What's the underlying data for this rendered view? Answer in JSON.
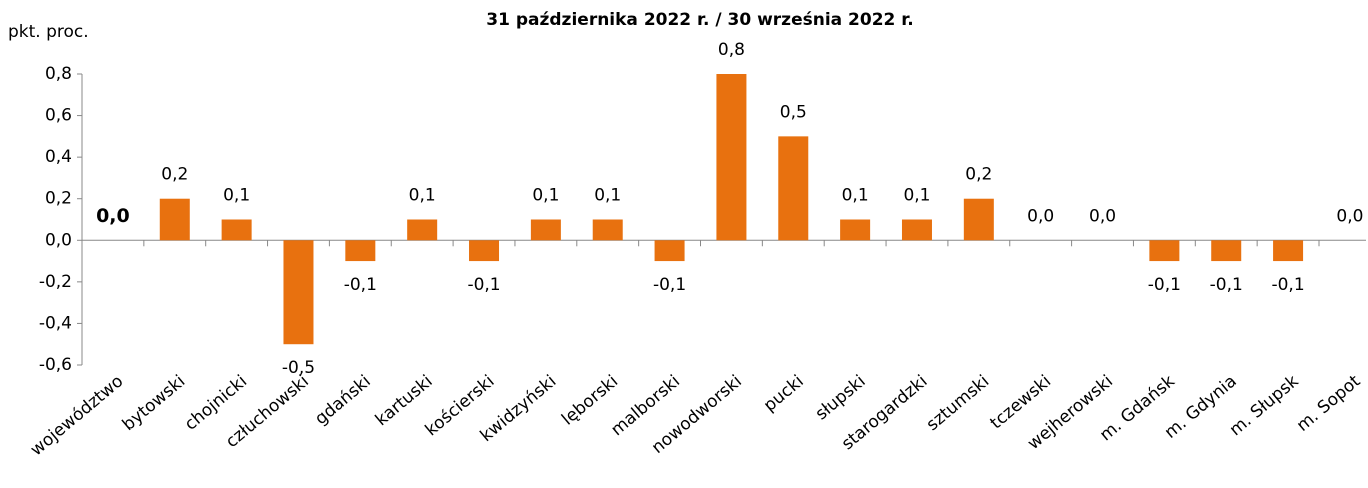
{
  "chart_data": {
    "type": "bar",
    "title": "31 października 2022 r. / 30 września 2022 r.",
    "y_label": "pkt. proc.",
    "categories": [
      "województwo",
      "bytowski",
      "chojnicki",
      "człuchowski",
      "gdański",
      "kartuski",
      "kościerski",
      "kwidzyński",
      "lęborski",
      "malborski",
      "nowodworski",
      "pucki",
      "słupski",
      "starogardzki",
      "sztumski",
      "tczewski",
      "wejherowski",
      "m. Gdańsk",
      "m. Gdynia",
      "m. Słupsk",
      "m. Sopot"
    ],
    "values": [
      0.0,
      0.2,
      0.1,
      -0.5,
      -0.1,
      0.1,
      -0.1,
      0.1,
      0.1,
      -0.1,
      0.8,
      0.5,
      0.1,
      0.1,
      0.2,
      0.0,
      0.0,
      -0.1,
      -0.1,
      -0.1,
      0.0
    ],
    "value_labels": [
      "0,0",
      "0,2",
      "0,1",
      "-0,5",
      "-0,1",
      "0,1",
      "-0,1",
      "0,1",
      "0,1",
      "-0,1",
      "0,8",
      "0,5",
      "0,1",
      "0,1",
      "0,2",
      "0,0",
      "0,0",
      "-0,1",
      "-0,1",
      "-0,1",
      "0,0"
    ],
    "color": "#e8710f",
    "ylim": [
      -0.6,
      0.8
    ],
    "yticks": [
      {
        "value": -0.6,
        "label": "-0,6"
      },
      {
        "value": -0.4,
        "label": "-0,4"
      },
      {
        "value": -0.2,
        "label": "-0,2"
      },
      {
        "value": 0.0,
        "label": "0,0"
      },
      {
        "value": 0.2,
        "label": "0,2"
      },
      {
        "value": 0.4,
        "label": "0,4"
      },
      {
        "value": 0.6,
        "label": "0,6"
      },
      {
        "value": 0.8,
        "label": "0,8"
      }
    ],
    "grid": false
  }
}
